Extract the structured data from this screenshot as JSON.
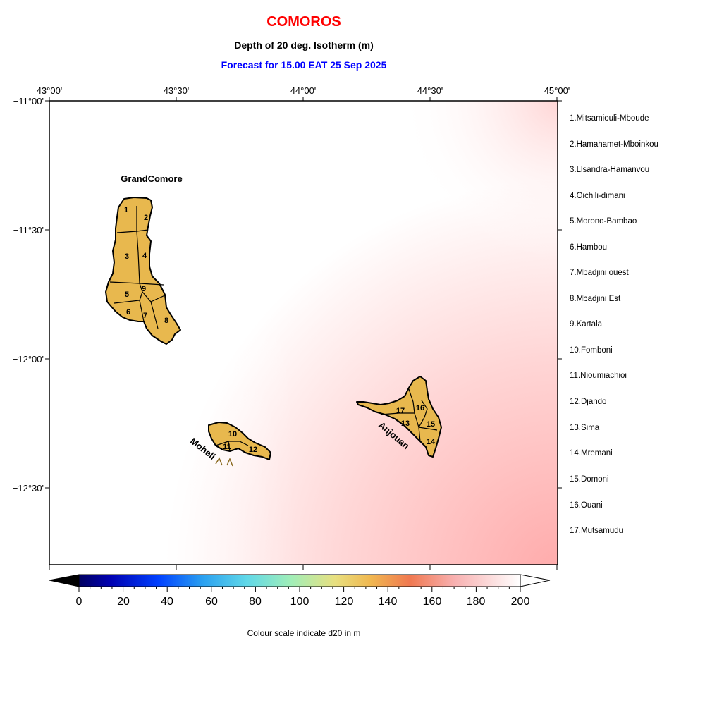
{
  "title": "COMOROS",
  "subtitle": "Depth of 20 deg. Isotherm (m)",
  "forecast": "Forecast for  15.00 EAT 25 Sep 2025",
  "colors": {
    "title": "#ff0000",
    "forecast": "#0000ff",
    "land": "#e8b84e"
  },
  "longitude_labels": [
    "43°00'",
    "43°30'",
    "44°00'",
    "44°30'",
    "45°00'"
  ],
  "latitude_labels": [
    "−11°00'",
    "−11°30'",
    "−12°00'",
    "−12°30'"
  ],
  "islands": {
    "grand_comore": "GrandComore",
    "moheli": "Moheli",
    "anjouan": "Anjouan"
  },
  "region_numbers": [
    "1",
    "2",
    "3",
    "4",
    "5",
    "6",
    "7",
    "8",
    "9",
    "10",
    "11",
    "12",
    "13",
    "14",
    "15",
    "16",
    "17"
  ],
  "legend": [
    "1.Mitsamiouli-Mboude",
    "2.Hamahamet-Mboinkou",
    "3.Llsandra-Hamanvou",
    "4.Oichili-dimani",
    "5.Morono-Bambao",
    "6.Hambou",
    "7.Mbadjini ouest",
    "8.Mbadjini Est",
    "9.Kartala",
    "10.Fomboni",
    "11.Nioumiachioi",
    "12.Djando",
    "13.Sima",
    "14.Mremani",
    "15.Domoni",
    "16.Ouani",
    "17.Mutsamudu"
  ],
  "colorbar": {
    "ticks": [
      "0",
      "20",
      "40",
      "60",
      "80",
      "100",
      "120",
      "140",
      "160",
      "180",
      "200"
    ],
    "range": [
      0,
      200
    ],
    "caption": "Colour scale indicate d20 in m"
  }
}
